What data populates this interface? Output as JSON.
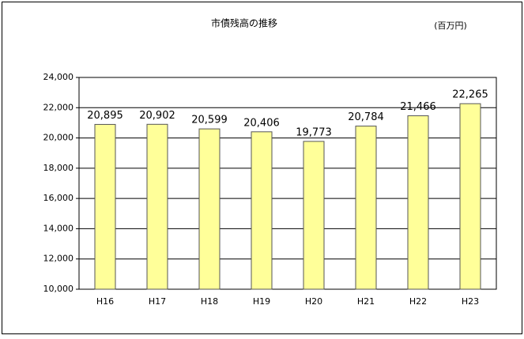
{
  "chart_data": {
    "type": "bar",
    "title": "市債残高の推移",
    "unit_label": "(百万円)",
    "categories": [
      "H16",
      "H17",
      "H18",
      "H19",
      "H20",
      "H21",
      "H22",
      "H23"
    ],
    "values": [
      20895,
      20902,
      20599,
      20406,
      19773,
      20784,
      21466,
      22265
    ],
    "value_labels": [
      "20,895",
      "20,902",
      "20,599",
      "20,406",
      "19,773",
      "20,784",
      "21,466",
      "22,265"
    ],
    "color": "#ffff99",
    "ylim": [
      10000,
      24000
    ],
    "yticks": [
      {
        "value": 10000,
        "label": "10,000"
      },
      {
        "value": 12000,
        "label": "12,000"
      },
      {
        "value": 14000,
        "label": "14,000"
      },
      {
        "value": 16000,
        "label": "16,000"
      },
      {
        "value": 18000,
        "label": "18,000"
      },
      {
        "value": 20000,
        "label": "20,000"
      },
      {
        "value": 22000,
        "label": "22,000"
      },
      {
        "value": 24000,
        "label": "24,000"
      }
    ],
    "grid": true
  }
}
